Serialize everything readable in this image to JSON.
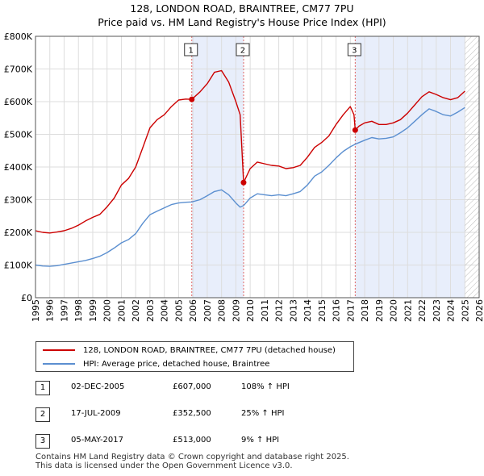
{
  "header": {
    "title": "128, LONDON ROAD, BRAINTREE, CM77 7PU",
    "subtitle": "Price paid vs. HM Land Registry's House Price Index (HPI)"
  },
  "colors": {
    "price": "#cc0000",
    "hpi": "#5b8fd0",
    "shade": "#e8eefb",
    "grid": "#dddddd",
    "hatch": "#bbbbbb"
  },
  "chart_data": {
    "type": "line",
    "title": "128, LONDON ROAD, BRAINTREE, CM77 7PU",
    "xlim": [
      1995,
      2026
    ],
    "ylim": [
      0,
      800000
    ],
    "x_ticks": [
      "1995",
      "1996",
      "1997",
      "1998",
      "1999",
      "2000",
      "2001",
      "2002",
      "2003",
      "2004",
      "2005",
      "2006",
      "2007",
      "2008",
      "2009",
      "2010",
      "2011",
      "2012",
      "2013",
      "2014",
      "2015",
      "2016",
      "2017",
      "2018",
      "2019",
      "2020",
      "2021",
      "2022",
      "2023",
      "2024",
      "2025",
      "2026"
    ],
    "y_ticks": [
      {
        "value": 0,
        "label": "£0"
      },
      {
        "value": 100000,
        "label": "£100K"
      },
      {
        "value": 200000,
        "label": "£200K"
      },
      {
        "value": 300000,
        "label": "£300K"
      },
      {
        "value": 400000,
        "label": "£400K"
      },
      {
        "value": 500000,
        "label": "£500K"
      },
      {
        "value": 600000,
        "label": "£600K"
      },
      {
        "value": 700000,
        "label": "£700K"
      },
      {
        "value": 800000,
        "label": "£800K"
      }
    ],
    "forecast_from": 2025.0,
    "series": [
      {
        "name": "128, LONDON ROAD, BRAINTREE, CM77 7PU (detached house)",
        "points": [
          [
            1995.0,
            205000
          ],
          [
            1995.5,
            200000
          ],
          [
            1996.0,
            198000
          ],
          [
            1996.5,
            201000
          ],
          [
            1997.0,
            205000
          ],
          [
            1997.5,
            212000
          ],
          [
            1998.0,
            222000
          ],
          [
            1998.5,
            235000
          ],
          [
            1999.0,
            246000
          ],
          [
            1999.5,
            255000
          ],
          [
            2000.0,
            278000
          ],
          [
            2000.5,
            305000
          ],
          [
            2001.0,
            345000
          ],
          [
            2001.5,
            365000
          ],
          [
            2002.0,
            400000
          ],
          [
            2002.5,
            460000
          ],
          [
            2003.0,
            520000
          ],
          [
            2003.5,
            545000
          ],
          [
            2004.0,
            560000
          ],
          [
            2004.5,
            585000
          ],
          [
            2005.0,
            605000
          ],
          [
            2005.5,
            608000
          ],
          [
            2005.92,
            607000
          ],
          [
            2006.5,
            630000
          ],
          [
            2007.0,
            655000
          ],
          [
            2007.5,
            690000
          ],
          [
            2008.0,
            695000
          ],
          [
            2008.5,
            660000
          ],
          [
            2009.0,
            600000
          ],
          [
            2009.3,
            560000
          ],
          [
            2009.54,
            352500
          ],
          [
            2010.0,
            395000
          ],
          [
            2010.5,
            415000
          ],
          [
            2011.0,
            410000
          ],
          [
            2011.5,
            405000
          ],
          [
            2012.0,
            403000
          ],
          [
            2012.5,
            395000
          ],
          [
            2013.0,
            398000
          ],
          [
            2013.5,
            405000
          ],
          [
            2014.0,
            430000
          ],
          [
            2014.5,
            460000
          ],
          [
            2015.0,
            475000
          ],
          [
            2015.5,
            495000
          ],
          [
            2016.0,
            530000
          ],
          [
            2016.5,
            560000
          ],
          [
            2017.0,
            585000
          ],
          [
            2017.25,
            560000
          ],
          [
            2017.34,
            513000
          ],
          [
            2017.6,
            525000
          ],
          [
            2018.0,
            535000
          ],
          [
            2018.5,
            540000
          ],
          [
            2019.0,
            530000
          ],
          [
            2019.5,
            530000
          ],
          [
            2020.0,
            535000
          ],
          [
            2020.5,
            545000
          ],
          [
            2021.0,
            565000
          ],
          [
            2021.5,
            590000
          ],
          [
            2022.0,
            615000
          ],
          [
            2022.5,
            630000
          ],
          [
            2023.0,
            622000
          ],
          [
            2023.5,
            612000
          ],
          [
            2024.0,
            606000
          ],
          [
            2024.5,
            612000
          ],
          [
            2025.0,
            632000
          ]
        ]
      },
      {
        "name": "HPI: Average price, detached house, Braintree",
        "points": [
          [
            1995.0,
            100000
          ],
          [
            1995.5,
            97000
          ],
          [
            1996.0,
            96000
          ],
          [
            1996.5,
            98000
          ],
          [
            1997.0,
            102000
          ],
          [
            1997.5,
            106000
          ],
          [
            1998.0,
            110000
          ],
          [
            1998.5,
            114000
          ],
          [
            1999.0,
            120000
          ],
          [
            1999.5,
            127000
          ],
          [
            2000.0,
            138000
          ],
          [
            2000.5,
            152000
          ],
          [
            2001.0,
            168000
          ],
          [
            2001.5,
            178000
          ],
          [
            2002.0,
            196000
          ],
          [
            2002.5,
            228000
          ],
          [
            2003.0,
            254000
          ],
          [
            2003.5,
            265000
          ],
          [
            2004.0,
            275000
          ],
          [
            2004.5,
            285000
          ],
          [
            2005.0,
            290000
          ],
          [
            2005.5,
            292000
          ],
          [
            2005.92,
            293000
          ],
          [
            2006.5,
            300000
          ],
          [
            2007.0,
            312000
          ],
          [
            2007.5,
            325000
          ],
          [
            2008.0,
            330000
          ],
          [
            2008.5,
            315000
          ],
          [
            2009.0,
            290000
          ],
          [
            2009.3,
            277000
          ],
          [
            2009.54,
            282000
          ],
          [
            2010.0,
            305000
          ],
          [
            2010.5,
            318000
          ],
          [
            2011.0,
            315000
          ],
          [
            2011.5,
            312000
          ],
          [
            2012.0,
            315000
          ],
          [
            2012.5,
            312000
          ],
          [
            2013.0,
            318000
          ],
          [
            2013.5,
            325000
          ],
          [
            2014.0,
            345000
          ],
          [
            2014.5,
            372000
          ],
          [
            2015.0,
            385000
          ],
          [
            2015.5,
            405000
          ],
          [
            2016.0,
            428000
          ],
          [
            2016.5,
            448000
          ],
          [
            2017.0,
            462000
          ],
          [
            2017.34,
            470000
          ],
          [
            2018.0,
            482000
          ],
          [
            2018.5,
            490000
          ],
          [
            2019.0,
            486000
          ],
          [
            2019.5,
            488000
          ],
          [
            2020.0,
            492000
          ],
          [
            2020.5,
            505000
          ],
          [
            2021.0,
            520000
          ],
          [
            2021.5,
            540000
          ],
          [
            2022.0,
            560000
          ],
          [
            2022.5,
            578000
          ],
          [
            2023.0,
            570000
          ],
          [
            2023.5,
            560000
          ],
          [
            2024.0,
            556000
          ],
          [
            2024.5,
            568000
          ],
          [
            2025.0,
            582000
          ]
        ]
      }
    ],
    "transactions": [
      {
        "label": "1",
        "x": 2005.92,
        "y": 607000,
        "date": "02-DEC-2005",
        "price": "£607,000",
        "hpi": "108% ↑ HPI"
      },
      {
        "label": "2",
        "x": 2009.54,
        "y": 352500,
        "date": "17-JUL-2009",
        "price": "£352,500",
        "hpi": "25% ↑ HPI"
      },
      {
        "label": "3",
        "x": 2017.34,
        "y": 513000,
        "date": "05-MAY-2017",
        "price": "£513,000",
        "hpi": "9% ↑ HPI"
      }
    ]
  },
  "legend": {
    "price_label": "128, LONDON ROAD, BRAINTREE, CM77 7PU (detached house)",
    "hpi_label": "HPI: Average price, detached house, Braintree"
  },
  "footer": {
    "line1": "Contains HM Land Registry data © Crown copyright and database right 2025.",
    "line2": "This data is licensed under the Open Government Licence v3.0."
  }
}
